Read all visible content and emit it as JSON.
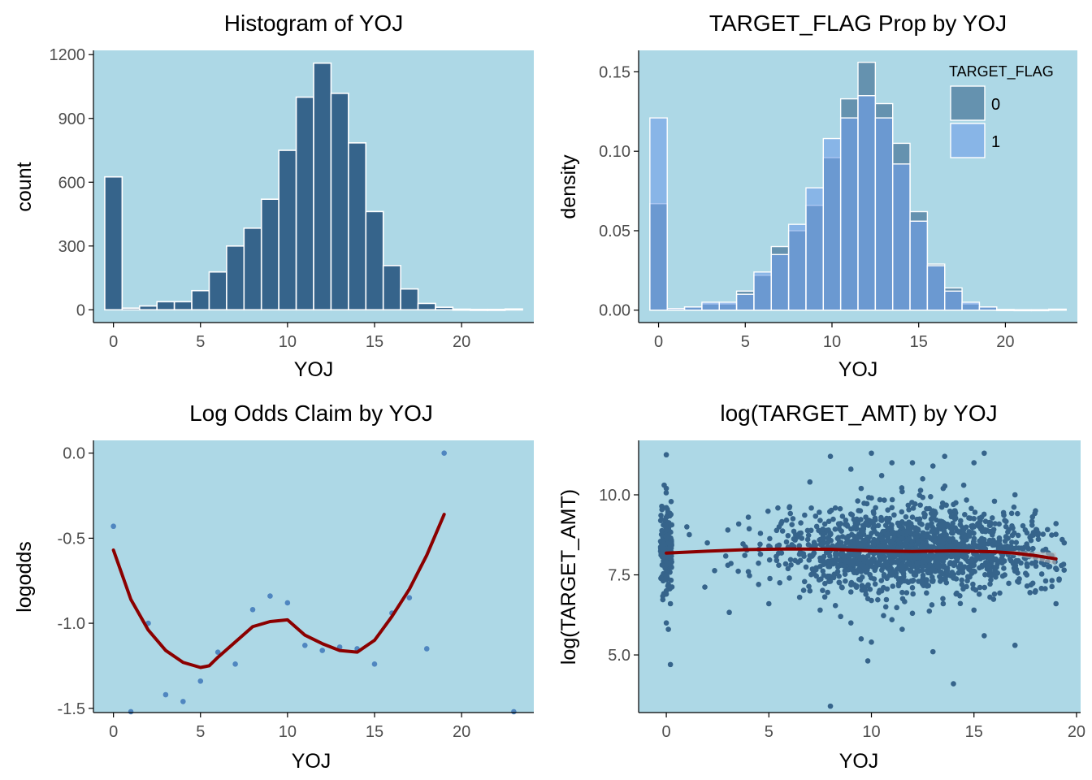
{
  "colors": {
    "panel_background": "#add8e6",
    "bar_fill": "#36648b",
    "bar_outline": "#ffffff",
    "flag0_fill": "#36648b",
    "flag1_fill": "#6f9ee8",
    "point": "#36648b",
    "point_light": "#4f86c0",
    "smooth_line": "#8b0000",
    "band": "#b9b9b9",
    "axis": "#000000",
    "tick_text": "#4d4d4d"
  },
  "chart_data": [
    {
      "type": "bar",
      "title": "Histogram of YOJ",
      "xlabel": "YOJ",
      "ylabel": "count",
      "xlim": [
        -1.15,
        24.15
      ],
      "ylim": [
        -60,
        1220
      ],
      "xticks": [
        0,
        5,
        10,
        15,
        20
      ],
      "yticks": [
        0,
        300,
        600,
        900,
        1200
      ],
      "ytick_labels": [
        "0",
        "300",
        "600",
        "900",
        "1200"
      ],
      "bin_width": 1,
      "x": [
        0,
        1,
        2,
        3,
        4,
        5,
        6,
        7,
        8,
        9,
        10,
        11,
        12,
        13,
        14,
        15,
        16,
        17,
        18,
        19,
        20,
        21,
        22,
        23
      ],
      "values": [
        625,
        8,
        18,
        38,
        38,
        90,
        178,
        300,
        384,
        520,
        750,
        1000,
        1160,
        1018,
        785,
        462,
        208,
        98,
        30,
        12,
        3,
        2,
        2,
        4
      ],
      "grid": false
    },
    {
      "type": "bar",
      "title": "TARGET_FLAG Prop by YOJ",
      "xlabel": "YOJ",
      "ylabel": "density",
      "xlim": [
        -1.15,
        24.15
      ],
      "ylim": [
        -0.0078,
        0.1635
      ],
      "xticks": [
        0,
        5,
        10,
        15,
        20
      ],
      "yticks": [
        0,
        0.05,
        0.1,
        0.15
      ],
      "ytick_labels": [
        "0.00",
        "0.05",
        "0.10",
        "0.15"
      ],
      "bin_width": 1,
      "x": [
        0,
        1,
        2,
        3,
        4,
        5,
        6,
        7,
        8,
        9,
        10,
        11,
        12,
        13,
        14,
        15,
        16,
        17,
        18,
        19,
        20,
        21,
        22,
        23
      ],
      "series": [
        {
          "name": "0",
          "values": [
            0.067,
            0.001,
            0.002,
            0.004,
            0.004,
            0.012,
            0.022,
            0.04,
            0.05,
            0.066,
            0.096,
            0.133,
            0.156,
            0.13,
            0.105,
            0.062,
            0.029,
            0.014,
            0.004,
            0.002,
            0.0004,
            0.0003,
            0.0003,
            0.0006
          ]
        },
        {
          "name": "1",
          "values": [
            0.121,
            0.001,
            0.002,
            0.005,
            0.005,
            0.01,
            0.024,
            0.035,
            0.054,
            0.077,
            0.108,
            0.121,
            0.135,
            0.121,
            0.092,
            0.056,
            0.028,
            0.012,
            0.005,
            0.002,
            0.0004,
            0.0003,
            0.0003,
            0.0006
          ]
        }
      ],
      "legend": {
        "title": "TARGET_FLAG",
        "position": "top-right"
      },
      "grid": false
    },
    {
      "type": "scatter",
      "title": "Log Odds Claim by YOJ",
      "xlabel": "YOJ",
      "ylabel": "logodds",
      "xlim": [
        -1.15,
        24.15
      ],
      "ylim": [
        -1.525,
        0.075
      ],
      "xticks": [
        0,
        5,
        10,
        15,
        20
      ],
      "yticks": [
        -1.5,
        -1,
        -0.5,
        0
      ],
      "ytick_labels": [
        "-1.5",
        "-1.0",
        "-0.5",
        "0.0"
      ],
      "points": {
        "x": [
          0,
          1,
          2,
          3,
          4,
          5,
          6,
          7,
          8,
          9,
          10,
          11,
          12,
          13,
          14,
          15,
          16,
          17,
          18,
          19,
          23
        ],
        "y": [
          -0.43,
          -1.52,
          -1.0,
          -1.42,
          -1.46,
          -1.34,
          -1.17,
          -1.24,
          -0.92,
          -0.84,
          -0.88,
          -1.13,
          -1.16,
          -1.14,
          -1.15,
          -1.24,
          -0.94,
          -0.85,
          -1.15,
          0.0,
          -1.52
        ]
      },
      "smooth": {
        "x": [
          0,
          1,
          2,
          3,
          4,
          5,
          5.5,
          6,
          7,
          8,
          9,
          10,
          11,
          12,
          13,
          14,
          15,
          16,
          17,
          18,
          19
        ],
        "y": [
          -0.57,
          -0.86,
          -1.04,
          -1.16,
          -1.23,
          -1.26,
          -1.25,
          -1.2,
          -1.11,
          -1.02,
          -0.99,
          -0.98,
          -1.07,
          -1.12,
          -1.16,
          -1.17,
          -1.1,
          -0.96,
          -0.8,
          -0.6,
          -0.36
        ]
      },
      "grid": false
    },
    {
      "type": "scatter",
      "title": "log(TARGET_AMT) by YOJ",
      "xlabel": "YOJ",
      "ylabel": "log(TARGET_AMT)",
      "xlim": [
        -1.35,
        20.2
      ],
      "ylim": [
        3.2,
        11.7
      ],
      "xticks": [
        0,
        5,
        10,
        15,
        20
      ],
      "yticks": [
        5,
        7.5,
        10
      ],
      "ytick_labels": [
        "5.0",
        "7.5",
        "10.0"
      ],
      "points": {
        "x": [
          0,
          0,
          0,
          0,
          0,
          0.2,
          0.1,
          0,
          0,
          0.1,
          0,
          0.2,
          0,
          0.1,
          0.2,
          0,
          0,
          0.1,
          0,
          0,
          1,
          2,
          3,
          3,
          4,
          4,
          4.5,
          5,
          5,
          5.5,
          6,
          6,
          6.5,
          6.5,
          7,
          7,
          7,
          7.5,
          7.5,
          7.5,
          8,
          8,
          8,
          8,
          8.5,
          8.5,
          8.5,
          9,
          9,
          9,
          9,
          9,
          9.5,
          9.5,
          9.5,
          9.5,
          10,
          10,
          10,
          10,
          10,
          10,
          10.5,
          10.5,
          10.5,
          10.5,
          11,
          11,
          11,
          11,
          11,
          11.5,
          11.5,
          11.5,
          11.5,
          12,
          12,
          12,
          12,
          12,
          12.5,
          12.5,
          12.5,
          13,
          13,
          13,
          13,
          13,
          13.5,
          13.5,
          13.5,
          14,
          14,
          14,
          14,
          14.5,
          14.5,
          15,
          15,
          15,
          15,
          15.5,
          15.5,
          15.5,
          16,
          16,
          16,
          16.5,
          16.5,
          17,
          17,
          17.5,
          18,
          18,
          18.5,
          19,
          19,
          19.4
        ],
        "y": [
          11.25,
          10.2,
          9.6,
          9.0,
          8.7,
          8.4,
          8.1,
          7.8,
          7.5,
          7.2,
          6.9,
          6.6,
          6.0,
          5.8,
          4.7,
          9.3,
          8.9,
          8.5,
          7.9,
          7.0,
          9.0,
          8.5,
          7.8,
          8.9,
          9.3,
          7.6,
          7.2,
          6.6,
          8.4,
          9.0,
          7.4,
          9.6,
          6.8,
          8.8,
          10.4,
          8.1,
          7.0,
          6.4,
          8.6,
          9.2,
          11.2,
          8.8,
          7.3,
          3.4,
          6.2,
          9.1,
          7.8,
          10.8,
          9.4,
          8.2,
          7.2,
          6.0,
          10.2,
          8.9,
          7.6,
          5.5,
          11.3,
          9.9,
          8.8,
          7.9,
          6.7,
          5.4,
          10.6,
          9.2,
          8.4,
          7.0,
          11.0,
          9.6,
          8.5,
          7.5,
          6.1,
          10.1,
          8.8,
          7.7,
          5.8,
          11.0,
          9.3,
          8.3,
          7.1,
          6.3,
          10.5,
          8.7,
          7.9,
          10.9,
          9.5,
          8.1,
          7.3,
          5.1,
          10.2,
          8.6,
          6.6,
          4.1,
          9.7,
          8.4,
          7.4,
          10.3,
          8.9,
          11.0,
          9.0,
          7.8,
          6.4,
          11.3,
          8.6,
          5.6,
          9.8,
          8.2,
          6.9,
          9.2,
          7.5,
          10.0,
          5.3,
          8.9,
          9.5,
          7.0,
          8.3,
          9.1,
          6.6,
          8.5
        ],
        "dense_clusters": [
          {
            "x_center": 0,
            "x_spread": 0.28,
            "y_center": 8.3,
            "y_spread": 1.1,
            "count": 160
          },
          {
            "x_center": 12,
            "x_spread": 6.0,
            "y_center": 8.25,
            "y_spread": 1.0,
            "count": 1100
          },
          {
            "x_center": 12,
            "x_spread": 5.0,
            "y_center": 8.35,
            "y_spread": 1.45,
            "count": 420
          }
        ]
      },
      "smooth": {
        "x": [
          0,
          2,
          4,
          6,
          8,
          10,
          12,
          14,
          16,
          17,
          18,
          19
        ],
        "y": [
          8.18,
          8.24,
          8.29,
          8.31,
          8.3,
          8.25,
          8.23,
          8.25,
          8.22,
          8.18,
          8.1,
          8.0
        ]
      },
      "grid": false
    }
  ]
}
